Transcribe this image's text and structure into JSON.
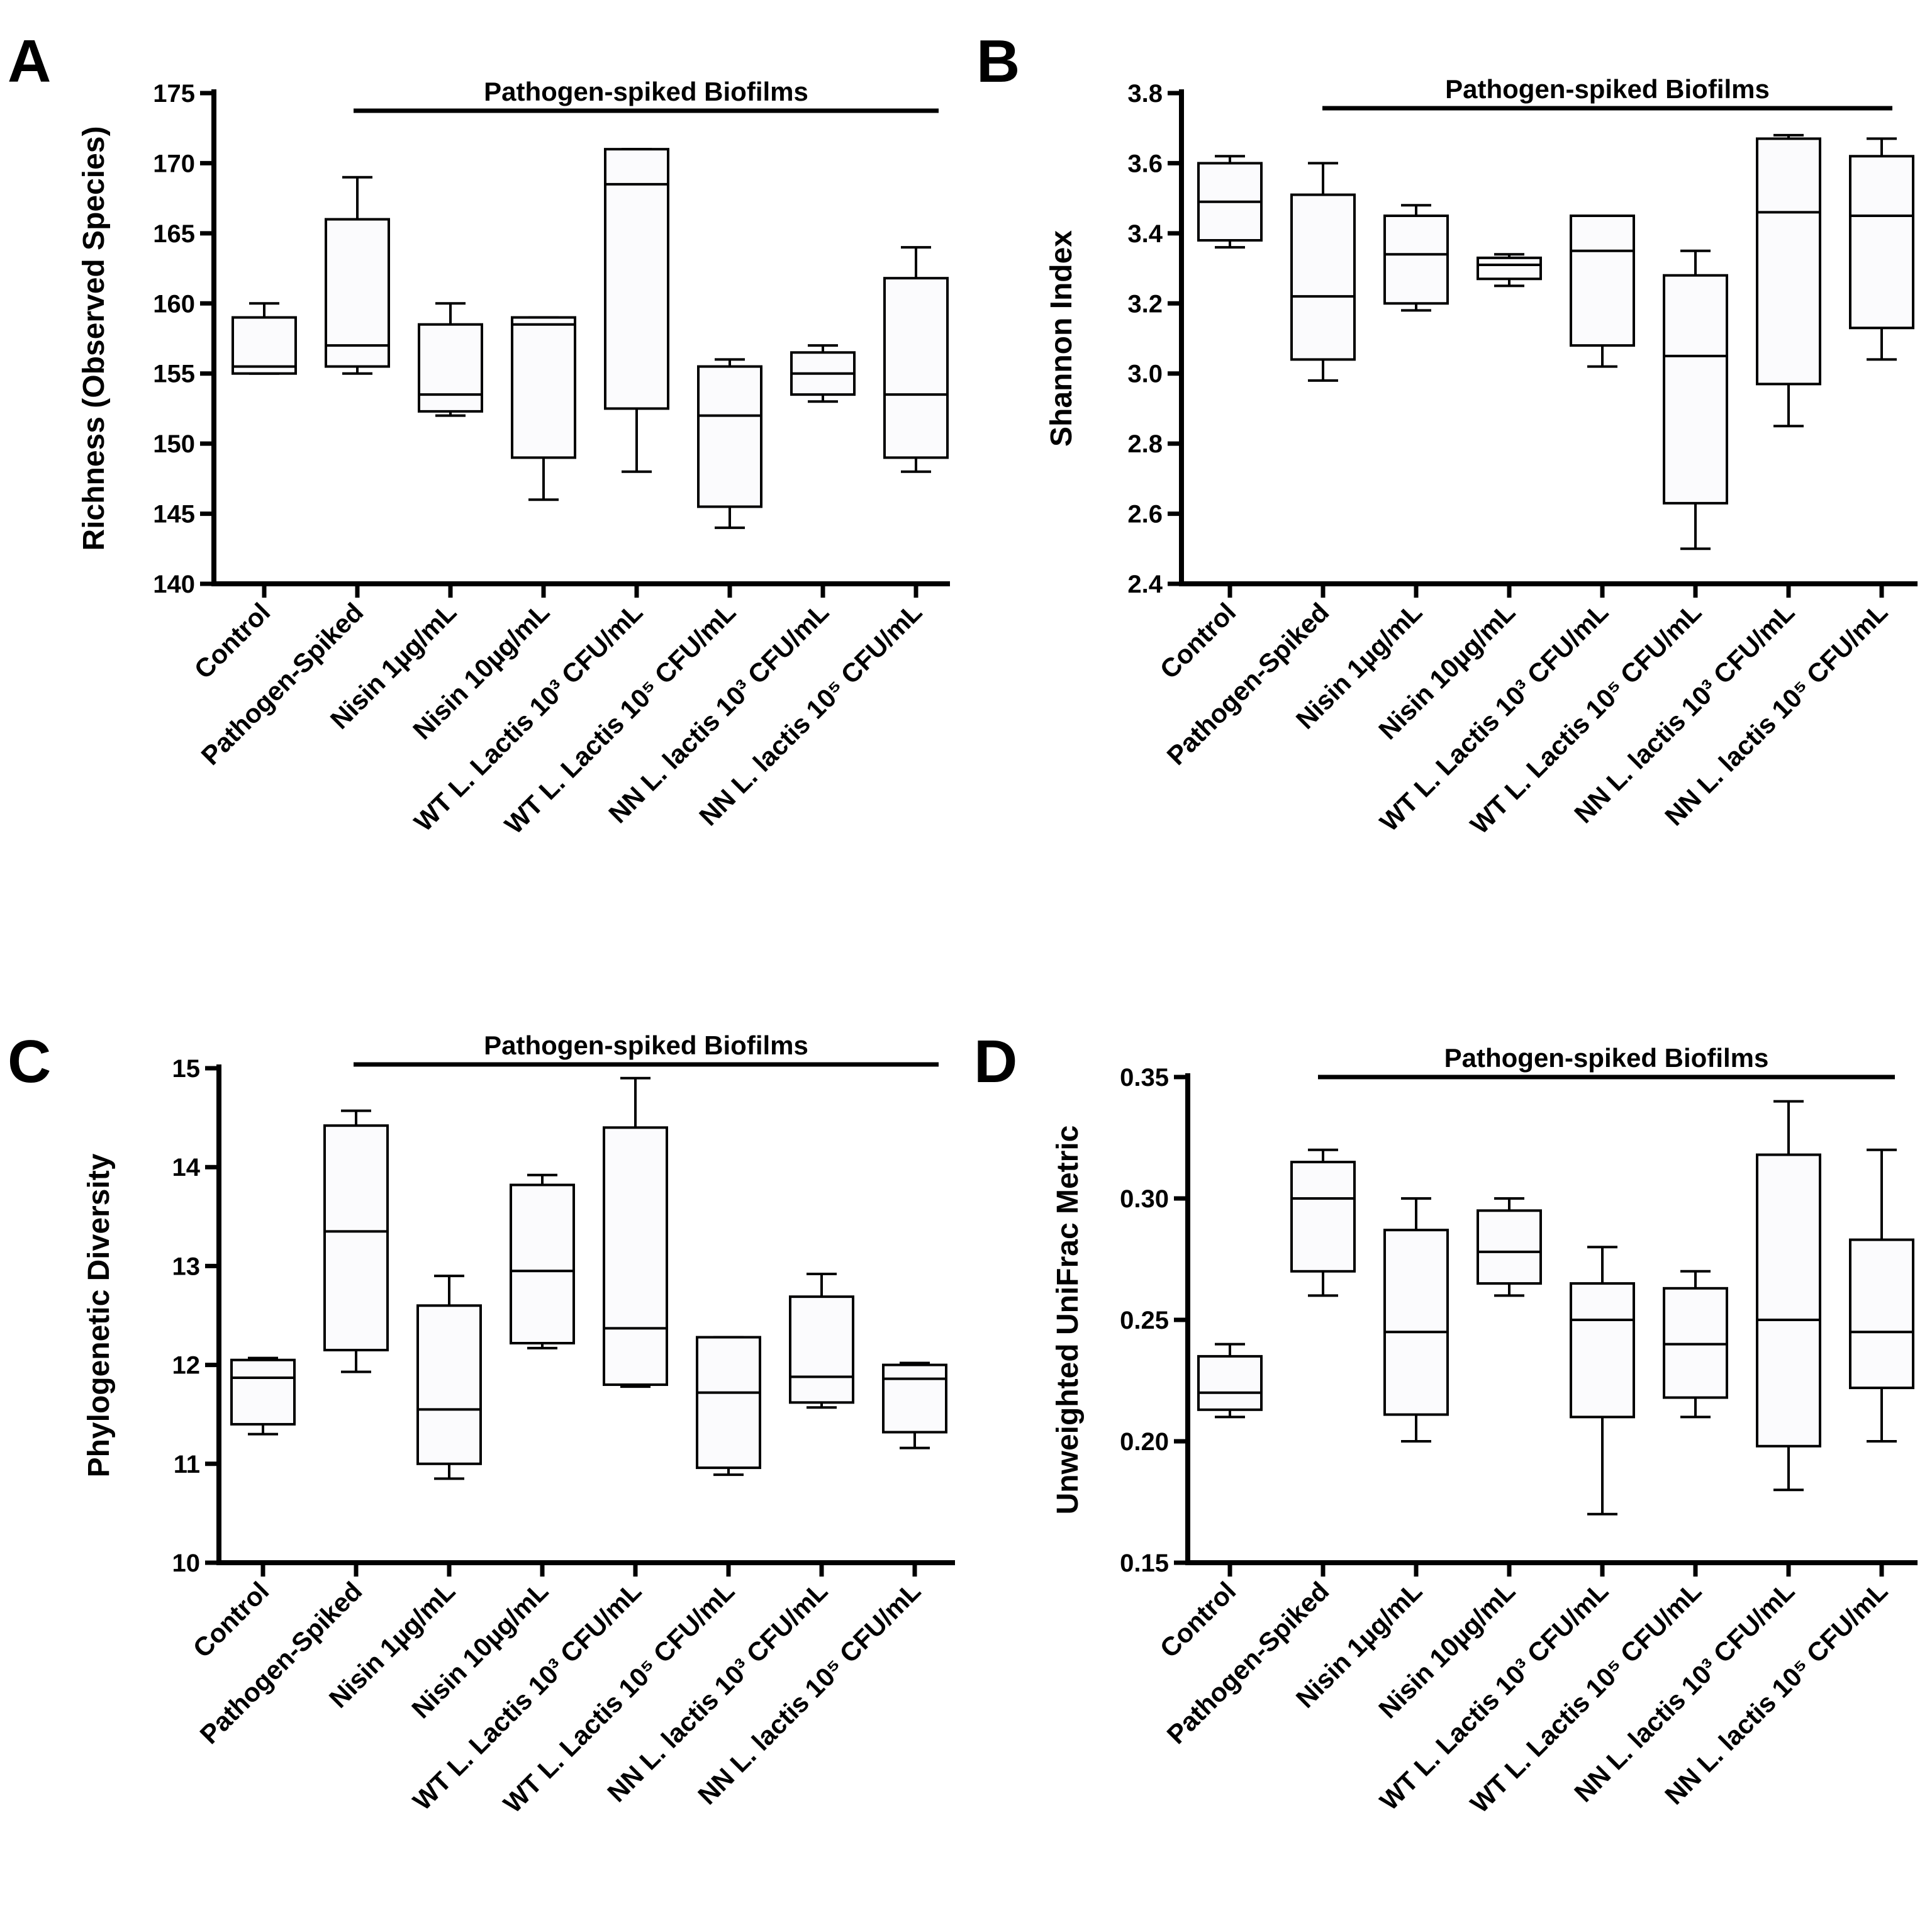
{
  "bracket_label": "Pathogen-spiked Biofilms",
  "chart_data": [
    {
      "type": "boxplot",
      "panel": "A",
      "ylabel": "Richness (Observed Species)",
      "ylim": [
        140,
        175
      ],
      "yticks": [
        140,
        145,
        150,
        155,
        160,
        165,
        170,
        175
      ],
      "categories": [
        "Control",
        "Pathogen-Spiked",
        "Nisin 1µg/mL",
        "Nisin 10µg/mL",
        "WT L. Lactis 10³ CFU/mL",
        "WT L. Lactis 10⁵ CFU/mL",
        "NN L. lactis 10³ CFU/mL",
        "NN L. lactis 10⁵ CFU/mL"
      ],
      "boxes": [
        {
          "min": 155,
          "q1": 155,
          "median": 155.5,
          "q3": 159,
          "max": 160
        },
        {
          "min": 155,
          "q1": 155.5,
          "median": 157,
          "q3": 166,
          "max": 169
        },
        {
          "min": 152,
          "q1": 152.3,
          "median": 153.5,
          "q3": 158.5,
          "max": 160
        },
        {
          "min": 146,
          "q1": 149,
          "median": 158.5,
          "q3": 159,
          "max": 159
        },
        {
          "min": 148,
          "q1": 152.5,
          "median": 168.5,
          "q3": 171,
          "max": 171
        },
        {
          "min": 144,
          "q1": 145.5,
          "median": 152,
          "q3": 155.5,
          "max": 156
        },
        {
          "min": 153,
          "q1": 153.5,
          "median": 155,
          "q3": 156.5,
          "max": 157
        },
        {
          "min": 148,
          "q1": 149,
          "median": 153.5,
          "q3": 161.8,
          "max": 164
        }
      ]
    },
    {
      "type": "boxplot",
      "panel": "B",
      "ylabel": "Shannon Index",
      "ylim": [
        2.4,
        3.8
      ],
      "yticks": [
        "2.4",
        "2.6",
        "2.8",
        "3.0",
        "3.2",
        "3.4",
        "3.6",
        "3.8"
      ],
      "categories": [
        "Control",
        "Pathogen-Spiked",
        "Nisin 1µg/mL",
        "Nisin 10µg/mL",
        "WT L. Lactis 10³ CFU/mL",
        "WT L. Lactis 10⁵ CFU/mL",
        "NN L. lactis 10³ CFU/mL",
        "NN L. lactis 10⁵ CFU/mL"
      ],
      "boxes": [
        {
          "min": 3.36,
          "q1": 3.38,
          "median": 3.49,
          "q3": 3.6,
          "max": 3.62
        },
        {
          "min": 2.98,
          "q1": 3.04,
          "median": 3.22,
          "q3": 3.51,
          "max": 3.6
        },
        {
          "min": 3.18,
          "q1": 3.2,
          "median": 3.34,
          "q3": 3.45,
          "max": 3.48
        },
        {
          "min": 3.25,
          "q1": 3.27,
          "median": 3.31,
          "q3": 3.33,
          "max": 3.34
        },
        {
          "min": 3.02,
          "q1": 3.08,
          "median": 3.35,
          "q3": 3.45,
          "max": 3.45
        },
        {
          "min": 2.5,
          "q1": 2.63,
          "median": 3.05,
          "q3": 3.28,
          "max": 3.35
        },
        {
          "min": 2.85,
          "q1": 2.97,
          "median": 3.46,
          "q3": 3.67,
          "max": 3.68
        },
        {
          "min": 3.04,
          "q1": 3.13,
          "median": 3.45,
          "q3": 3.62,
          "max": 3.67
        }
      ]
    },
    {
      "type": "boxplot",
      "panel": "C",
      "ylabel": "Phylogenetic Diversity",
      "ylim": [
        10,
        15
      ],
      "yticks": [
        10,
        11,
        12,
        13,
        14,
        15
      ],
      "categories": [
        "Control",
        "Pathogen-Spiked",
        "Nisin 1µg/mL",
        "Nisin 10µg/mL",
        "WT L. Lactis 10³ CFU/mL",
        "WT L. Lactis 10⁵ CFU/mL",
        "NN L. lactis 10³ CFU/mL",
        "NN L. lactis 10⁵ CFU/mL"
      ],
      "boxes": [
        {
          "min": 11.3,
          "q1": 11.4,
          "median": 11.87,
          "q3": 12.05,
          "max": 12.07
        },
        {
          "min": 11.93,
          "q1": 12.15,
          "median": 13.35,
          "q3": 14.42,
          "max": 14.57
        },
        {
          "min": 10.85,
          "q1": 11.0,
          "median": 11.55,
          "q3": 12.6,
          "max": 12.9
        },
        {
          "min": 12.17,
          "q1": 12.22,
          "median": 12.95,
          "q3": 13.82,
          "max": 13.92
        },
        {
          "min": 11.78,
          "q1": 11.8,
          "median": 12.37,
          "q3": 14.4,
          "max": 14.9
        },
        {
          "min": 10.89,
          "q1": 10.96,
          "median": 11.72,
          "q3": 12.28,
          "max": 12.28
        },
        {
          "min": 11.57,
          "q1": 11.62,
          "median": 11.88,
          "q3": 12.69,
          "max": 12.92
        },
        {
          "min": 11.16,
          "q1": 11.32,
          "median": 11.86,
          "q3": 12.0,
          "max": 12.02
        }
      ]
    },
    {
      "type": "boxplot",
      "panel": "D",
      "ylabel": "Unweighted UniFrac Metric",
      "ylim": [
        0.15,
        0.35
      ],
      "yticks": [
        "0.15",
        "0.20",
        "0.25",
        "0.30",
        "0.35"
      ],
      "categories": [
        "Control",
        "Pathogen-Spiked",
        "Nisin 1µg/mL",
        "Nisin 10µg/mL",
        "WT L. Lactis 10³ CFU/mL",
        "WT L. Lactis 10⁵ CFU/mL",
        "NN L. lactis 10³ CFU/mL",
        "NN L. lactis 10⁵ CFU/mL"
      ],
      "boxes": [
        {
          "min": 0.21,
          "q1": 0.213,
          "median": 0.22,
          "q3": 0.235,
          "max": 0.24
        },
        {
          "min": 0.26,
          "q1": 0.27,
          "median": 0.3,
          "q3": 0.315,
          "max": 0.32
        },
        {
          "min": 0.2,
          "q1": 0.211,
          "median": 0.245,
          "q3": 0.287,
          "max": 0.3
        },
        {
          "min": 0.26,
          "q1": 0.265,
          "median": 0.278,
          "q3": 0.295,
          "max": 0.3
        },
        {
          "min": 0.17,
          "q1": 0.21,
          "median": 0.25,
          "q3": 0.265,
          "max": 0.28
        },
        {
          "min": 0.21,
          "q1": 0.218,
          "median": 0.24,
          "q3": 0.263,
          "max": 0.27
        },
        {
          "min": 0.18,
          "q1": 0.198,
          "median": 0.25,
          "q3": 0.318,
          "max": 0.34
        },
        {
          "min": 0.2,
          "q1": 0.222,
          "median": 0.245,
          "q3": 0.283,
          "max": 0.32
        }
      ]
    }
  ]
}
